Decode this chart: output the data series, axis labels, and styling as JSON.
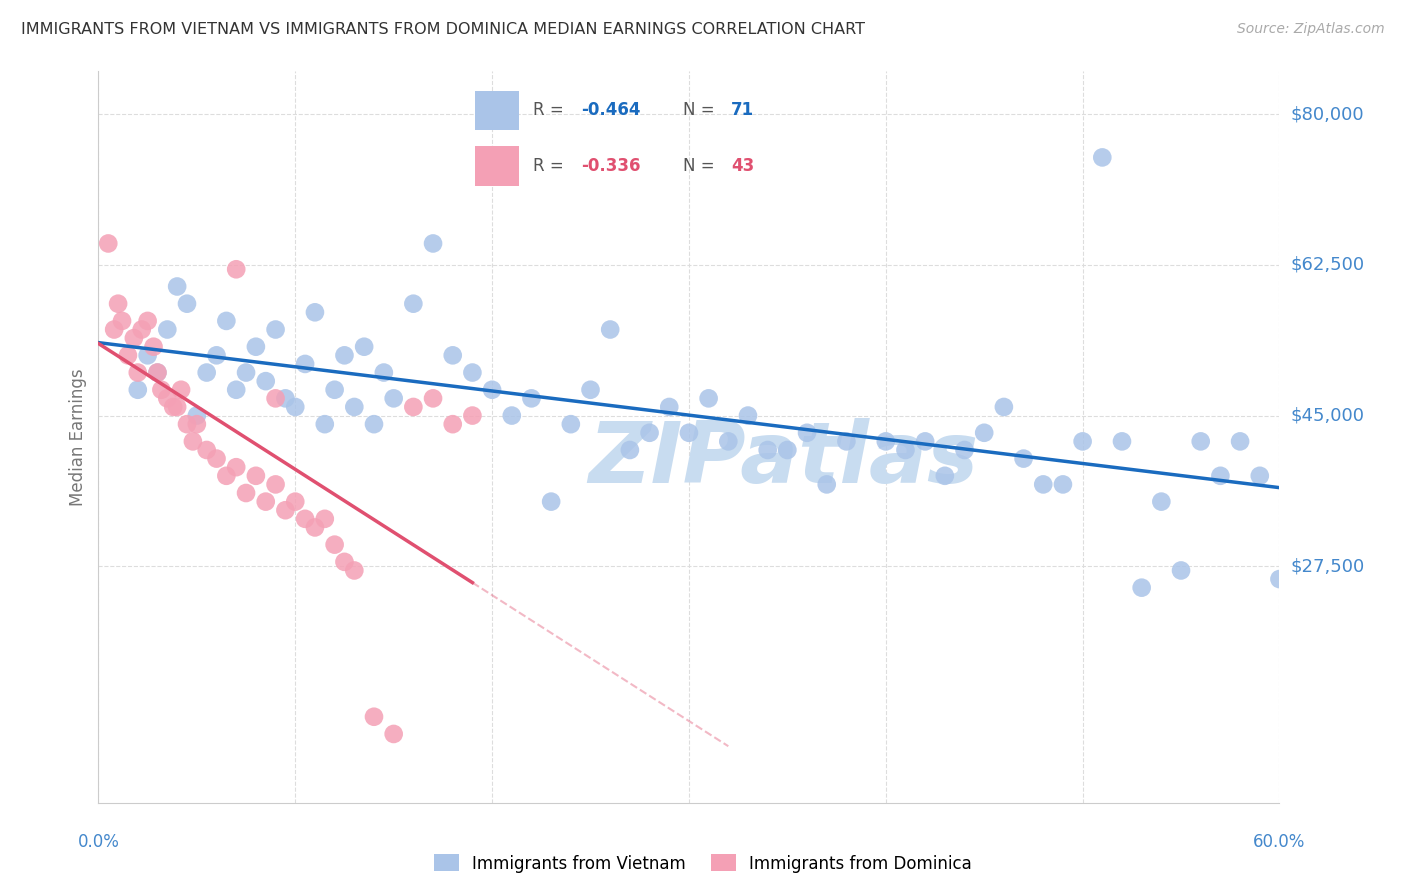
{
  "title": "IMMIGRANTS FROM VIETNAM VS IMMIGRANTS FROM DOMINICA MEDIAN EARNINGS CORRELATION CHART",
  "source": "Source: ZipAtlas.com",
  "ylabel": "Median Earnings",
  "xlim": [
    0.0,
    0.6
  ],
  "ylim": [
    0,
    85000
  ],
  "watermark": "ZIPatlas",
  "watermark_color": "#c8dcf0",
  "background_color": "#ffffff",
  "grid_color": "#dddddd",
  "vietnam_color": "#aac4e8",
  "dominica_color": "#f4a0b5",
  "trendline_vietnam_color": "#1a6bbf",
  "trendline_dominica_color": "#e05070",
  "title_color": "#333333",
  "ylabel_color": "#777777",
  "axis_label_color": "#4488cc",
  "ytick_color": "#4488cc",
  "y_tick_positions": [
    27500,
    45000,
    62500,
    80000
  ],
  "y_tick_labels": [
    "$27,500",
    "$45,000",
    "$62,500",
    "$80,000"
  ],
  "x_tick_positions": [
    0.0,
    0.1,
    0.2,
    0.3,
    0.4,
    0.5,
    0.6
  ],
  "vietnam_x": [
    0.02,
    0.025,
    0.03,
    0.035,
    0.04,
    0.045,
    0.05,
    0.055,
    0.06,
    0.065,
    0.07,
    0.075,
    0.08,
    0.085,
    0.09,
    0.095,
    0.1,
    0.105,
    0.11,
    0.115,
    0.12,
    0.125,
    0.13,
    0.135,
    0.14,
    0.145,
    0.15,
    0.16,
    0.17,
    0.18,
    0.19,
    0.2,
    0.21,
    0.22,
    0.23,
    0.24,
    0.25,
    0.26,
    0.27,
    0.28,
    0.3,
    0.31,
    0.32,
    0.33,
    0.35,
    0.36,
    0.38,
    0.4,
    0.42,
    0.43,
    0.44,
    0.45,
    0.47,
    0.48,
    0.5,
    0.52,
    0.54,
    0.56,
    0.57,
    0.58,
    0.59,
    0.6,
    0.29,
    0.34,
    0.37,
    0.41,
    0.46,
    0.49,
    0.53,
    0.55,
    0.51
  ],
  "vietnam_y": [
    48000,
    52000,
    50000,
    55000,
    60000,
    58000,
    45000,
    50000,
    52000,
    56000,
    48000,
    50000,
    53000,
    49000,
    55000,
    47000,
    46000,
    51000,
    57000,
    44000,
    48000,
    52000,
    46000,
    53000,
    44000,
    50000,
    47000,
    58000,
    65000,
    52000,
    50000,
    48000,
    45000,
    47000,
    35000,
    44000,
    48000,
    55000,
    41000,
    43000,
    43000,
    47000,
    42000,
    45000,
    41000,
    43000,
    42000,
    42000,
    42000,
    38000,
    41000,
    43000,
    40000,
    37000,
    42000,
    42000,
    35000,
    42000,
    38000,
    42000,
    38000,
    26000,
    46000,
    41000,
    37000,
    41000,
    46000,
    37000,
    25000,
    27000,
    75000
  ],
  "dominica_x": [
    0.005,
    0.008,
    0.01,
    0.012,
    0.015,
    0.018,
    0.02,
    0.022,
    0.025,
    0.028,
    0.03,
    0.032,
    0.035,
    0.038,
    0.04,
    0.042,
    0.045,
    0.048,
    0.05,
    0.055,
    0.06,
    0.065,
    0.07,
    0.075,
    0.08,
    0.085,
    0.09,
    0.095,
    0.1,
    0.105,
    0.11,
    0.115,
    0.12,
    0.125,
    0.13,
    0.14,
    0.15,
    0.16,
    0.17,
    0.18,
    0.19,
    0.07,
    0.09
  ],
  "dominica_y": [
    65000,
    55000,
    58000,
    56000,
    52000,
    54000,
    50000,
    55000,
    56000,
    53000,
    50000,
    48000,
    47000,
    46000,
    46000,
    48000,
    44000,
    42000,
    44000,
    41000,
    40000,
    38000,
    39000,
    36000,
    38000,
    35000,
    37000,
    34000,
    35000,
    33000,
    32000,
    33000,
    30000,
    28000,
    27000,
    10000,
    8000,
    46000,
    47000,
    44000,
    45000,
    62000,
    47000
  ],
  "legend_r1": "-0.464",
  "legend_n1": "71",
  "legend_r2": "-0.336",
  "legend_n2": "43",
  "bottom_legend_labels": [
    "Immigrants from Vietnam",
    "Immigrants from Dominica"
  ]
}
